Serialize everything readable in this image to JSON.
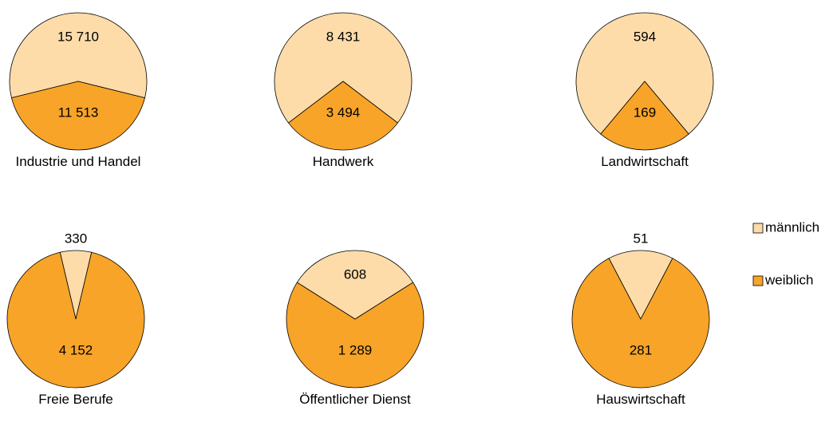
{
  "chart_data": [
    {
      "type": "pie",
      "title": "Industrie und Handel",
      "values": [
        15710,
        11513
      ],
      "value_labels": [
        "15 710",
        "11 513"
      ]
    },
    {
      "type": "pie",
      "title": "Handwerk",
      "values": [
        8431,
        3494
      ],
      "value_labels": [
        "8 431",
        "3 494"
      ]
    },
    {
      "type": "pie",
      "title": "Landwirtschaft",
      "values": [
        594,
        169
      ],
      "value_labels": [
        "594",
        "169"
      ]
    },
    {
      "type": "pie",
      "title": "Freie Berufe",
      "values": [
        330,
        4152
      ],
      "value_labels": [
        "330",
        "4 152"
      ]
    },
    {
      "type": "pie",
      "title": "Öffentlicher Dienst",
      "values": [
        608,
        1289
      ],
      "value_labels": [
        "608",
        "1 289"
      ]
    },
    {
      "type": "pie",
      "title": "Hauswirtschaft",
      "values": [
        51,
        281
      ],
      "value_labels": [
        "51",
        "281"
      ]
    }
  ],
  "legend": {
    "labels": [
      "männlich",
      "weiblich"
    ],
    "colors": [
      "#fddcaa",
      "#f8a428"
    ]
  }
}
